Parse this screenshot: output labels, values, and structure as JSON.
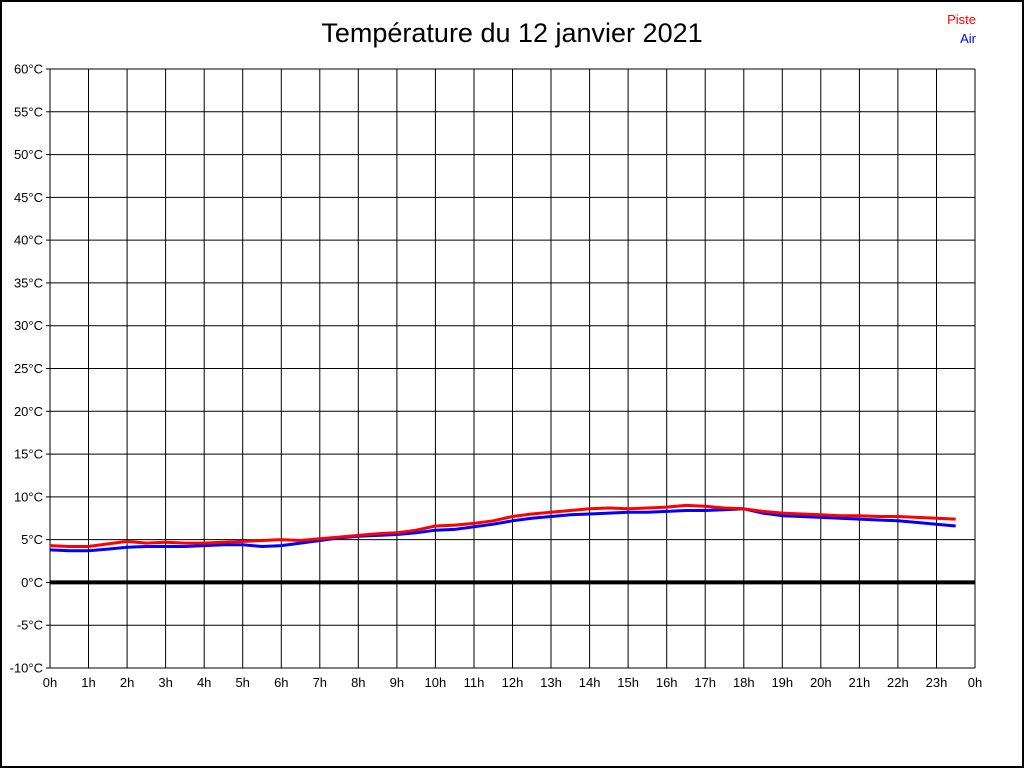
{
  "header": {
    "title": "Température du 12 janvier 2021"
  },
  "legend": {
    "position": "top-right",
    "items": [
      {
        "label": "Piste",
        "color": "#ff0000"
      },
      {
        "label": "Air",
        "color": "#0000ff"
      }
    ]
  },
  "chart_data": {
    "type": "line",
    "title": "Température du 12 janvier 2021",
    "xlabel": "",
    "ylabel": "",
    "xlim": [
      0,
      24
    ],
    "ylim": [
      -10,
      60
    ],
    "grid": true,
    "grid_color": "#000000",
    "background": "#ffffff",
    "x_grid_step_hours": 1,
    "y_grid_step_degrees": 5,
    "zero_line": {
      "value": 0,
      "color": "#000000",
      "width": 4
    },
    "y_ticks": [
      60,
      55,
      50,
      45,
      40,
      35,
      30,
      25,
      20,
      15,
      10,
      5,
      0,
      -5,
      -10
    ],
    "y_tick_labels": [
      "60°C",
      "55°C",
      "50°C",
      "45°C",
      "40°C",
      "35°C",
      "30°C",
      "25°C",
      "20°C",
      "15°C",
      "10°C",
      "5°C",
      "0°C",
      "-5°C",
      "-10°C"
    ],
    "x_ticks": [
      0,
      1,
      2,
      3,
      4,
      5,
      6,
      7,
      8,
      9,
      10,
      11,
      12,
      13,
      14,
      15,
      16,
      17,
      18,
      19,
      20,
      21,
      22,
      23,
      24
    ],
    "x_tick_labels": [
      "0h",
      "1h",
      "2h",
      "3h",
      "4h",
      "5h",
      "6h",
      "7h",
      "8h",
      "9h",
      "10h",
      "11h",
      "12h",
      "13h",
      "14h",
      "15h",
      "16h",
      "17h",
      "18h",
      "19h",
      "20h",
      "21h",
      "22h",
      "23h",
      "0h"
    ],
    "x": [
      0,
      0.5,
      1,
      1.5,
      2,
      2.5,
      3,
      3.5,
      4,
      4.5,
      5,
      5.5,
      6,
      6.5,
      7,
      7.5,
      8,
      8.5,
      9,
      9.5,
      10,
      10.5,
      11,
      11.5,
      12,
      12.5,
      13,
      13.5,
      14,
      14.5,
      15,
      15.5,
      16,
      16.5,
      17,
      17.5,
      18,
      18.5,
      19,
      19.5,
      20,
      20.5,
      21,
      21.5,
      22,
      22.5,
      23,
      23.5
    ],
    "series": [
      {
        "name": "Piste",
        "color": "#ff0000",
        "line_width": 3,
        "values": [
          4.3,
          4.2,
          4.2,
          4.5,
          4.8,
          4.6,
          4.7,
          4.6,
          4.6,
          4.7,
          4.8,
          4.9,
          5.0,
          4.9,
          5.1,
          5.3,
          5.5,
          5.7,
          5.8,
          6.1,
          6.6,
          6.7,
          6.9,
          7.2,
          7.7,
          8.0,
          8.2,
          8.4,
          8.6,
          8.7,
          8.6,
          8.7,
          8.8,
          9.0,
          8.9,
          8.7,
          8.6,
          8.3,
          8.1,
          8.0,
          7.9,
          7.8,
          7.8,
          7.7,
          7.7,
          7.6,
          7.5,
          7.4
        ]
      },
      {
        "name": "Air",
        "color": "#0000ff",
        "line_width": 3,
        "values": [
          3.8,
          3.7,
          3.7,
          3.9,
          4.1,
          4.2,
          4.2,
          4.2,
          4.3,
          4.4,
          4.4,
          4.2,
          4.3,
          4.6,
          4.9,
          5.2,
          5.4,
          5.5,
          5.6,
          5.8,
          6.1,
          6.2,
          6.5,
          6.8,
          7.2,
          7.5,
          7.7,
          7.9,
          8.0,
          8.1,
          8.2,
          8.2,
          8.3,
          8.4,
          8.4,
          8.5,
          8.6,
          8.1,
          7.8,
          7.7,
          7.6,
          7.5,
          7.4,
          7.3,
          7.2,
          7.0,
          6.8,
          6.6
        ]
      }
    ]
  }
}
